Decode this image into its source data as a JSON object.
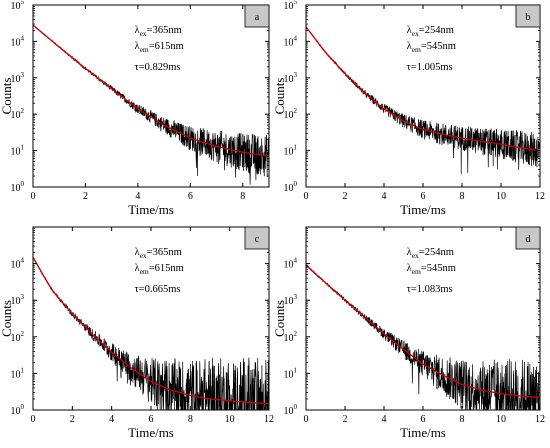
{
  "chart_data": [
    {
      "type": "line",
      "panel": "a",
      "xlabel": "Time/ms",
      "ylabel": "Counts",
      "xlim": [
        0,
        9
      ],
      "ylim": [
        1,
        100000
      ],
      "yscale": "log",
      "x_ticks": [
        "0",
        "2",
        "4",
        "6",
        "8"
      ],
      "y_ticks": [
        "10",
        "10",
        "10",
        "10",
        "10",
        "10"
      ],
      "y_tick_exponents": [
        "0",
        "1",
        "2",
        "3",
        "4",
        "5"
      ],
      "annotation": {
        "ex_symbol": "λ",
        "ex_sub": "ex",
        "ex_value": "=365nm",
        "em_symbol": "λ",
        "em_sub": "em",
        "em_value": "=615nm",
        "tau_symbol": "τ",
        "tau_value": "=0.829ms"
      },
      "series": [
        {
          "name": "decay",
          "style": "noisy",
          "color": "#000000",
          "x": [
            0,
            0.5,
            1,
            2,
            3,
            4,
            5,
            6,
            7,
            8,
            9
          ],
          "y": [
            28000,
            14000,
            7000,
            1800,
            500,
            140,
            50,
            22,
            13,
            9,
            7
          ]
        },
        {
          "name": "fit",
          "style": "smooth",
          "color": "#cc0000",
          "x": [
            0,
            0.5,
            1,
            2,
            3,
            4,
            5,
            6,
            7,
            8,
            9
          ],
          "y": [
            28000,
            14000,
            7000,
            1800,
            500,
            140,
            50,
            22,
            13,
            9,
            7
          ]
        }
      ]
    },
    {
      "type": "line",
      "panel": "b",
      "xlabel": "Time/ms",
      "ylabel": "Counts",
      "xlim": [
        0,
        12
      ],
      "ylim": [
        1,
        100000
      ],
      "yscale": "log",
      "x_ticks": [
        "0",
        "2",
        "4",
        "6",
        "8",
        "10",
        "12"
      ],
      "y_ticks": [
        "10",
        "10",
        "10",
        "10",
        "10",
        "10"
      ],
      "y_tick_exponents": [
        "0",
        "1",
        "2",
        "3",
        "4",
        "5"
      ],
      "annotation": {
        "ex_symbol": "λ",
        "ex_sub": "ex",
        "ex_value": "=254nm",
        "em_symbol": "λ",
        "em_sub": "em",
        "em_value": "=545nm",
        "tau_symbol": "τ",
        "tau_value": "=1.005ms"
      },
      "series": [
        {
          "name": "decay",
          "style": "noisy",
          "color": "#000000",
          "x": [
            0,
            1,
            2,
            3,
            4,
            5,
            6,
            7,
            8,
            9,
            10,
            11,
            12
          ],
          "y": [
            25000,
            5000,
            1300,
            380,
            140,
            65,
            38,
            28,
            22,
            18,
            15,
            12,
            10
          ]
        },
        {
          "name": "fit",
          "style": "smooth",
          "color": "#cc0000",
          "x": [
            0,
            1,
            2,
            3,
            4,
            5,
            6,
            7,
            8,
            9,
            10,
            11,
            12
          ],
          "y": [
            25000,
            5000,
            1300,
            380,
            140,
            65,
            38,
            28,
            22,
            18,
            15,
            12,
            10
          ]
        }
      ]
    },
    {
      "type": "line",
      "panel": "c",
      "xlabel": "Time/ms",
      "ylabel": "Counts",
      "xlim": [
        0,
        12
      ],
      "ylim": [
        1,
        100000
      ],
      "yscale": "log",
      "x_ticks": [
        "0",
        "2",
        "4",
        "6",
        "8",
        "10",
        "12"
      ],
      "y_ticks": [
        "10",
        "10",
        "10",
        "10",
        "10"
      ],
      "y_tick_exponents": [
        "0",
        "1",
        "2",
        "3",
        "4"
      ],
      "annotation": {
        "ex_symbol": "λ",
        "ex_sub": "ex",
        "ex_value": "=365nm",
        "em_symbol": "λ",
        "em_sub": "em",
        "em_value": "=615nm",
        "tau_symbol": "τ",
        "tau_value": "=0.665ms"
      },
      "series": [
        {
          "name": "decay",
          "style": "noisy",
          "color": "#000000",
          "x": [
            0,
            0.5,
            1,
            2,
            3,
            4,
            5,
            6,
            7,
            8,
            9,
            10,
            11,
            12
          ],
          "y": [
            15000,
            5000,
            1800,
            420,
            120,
            38,
            14,
            6,
            3.5,
            2.5,
            2,
            1.8,
            1.6,
            1.5
          ]
        },
        {
          "name": "fit",
          "style": "smooth",
          "color": "#cc0000",
          "x": [
            0,
            0.5,
            1,
            2,
            3,
            4,
            5,
            6,
            7,
            8,
            9,
            10,
            11,
            12
          ],
          "y": [
            15000,
            5000,
            1800,
            420,
            120,
            38,
            14,
            6,
            3.5,
            2.5,
            2,
            1.8,
            1.6,
            1.5
          ]
        }
      ]
    },
    {
      "type": "line",
      "panel": "d",
      "xlabel": "Time/ms",
      "ylabel": "Counts",
      "xlim": [
        0,
        12
      ],
      "ylim": [
        1,
        100000
      ],
      "yscale": "log",
      "x_ticks": [
        "0",
        "2",
        "4",
        "6",
        "8",
        "10",
        "12"
      ],
      "y_ticks": [
        "10",
        "10",
        "10",
        "10",
        "10"
      ],
      "y_tick_exponents": [
        "0",
        "1",
        "2",
        "3",
        "4"
      ],
      "annotation": {
        "ex_symbol": "λ",
        "ex_sub": "ex",
        "ex_value": "=254nm",
        "em_symbol": "λ",
        "em_sub": "em",
        "em_value": "=545nm",
        "tau_symbol": "τ",
        "tau_value": "=1.083ms"
      },
      "series": [
        {
          "name": "decay",
          "style": "noisy",
          "color": "#000000",
          "x": [
            0,
            1,
            2,
            3,
            4,
            5,
            6,
            7,
            8,
            9,
            10,
            11,
            12
          ],
          "y": [
            9000,
            3000,
            1000,
            350,
            120,
            45,
            18,
            9,
            5,
            3.5,
            2.8,
            2.4,
            2.2
          ]
        },
        {
          "name": "fit",
          "style": "smooth",
          "color": "#cc0000",
          "x": [
            0,
            1,
            2,
            3,
            4,
            5,
            6,
            7,
            8,
            9,
            10,
            11,
            12
          ],
          "y": [
            9000,
            3000,
            1000,
            350,
            120,
            45,
            18,
            9,
            5,
            3.5,
            2.8,
            2.4,
            2.2
          ]
        }
      ]
    }
  ]
}
